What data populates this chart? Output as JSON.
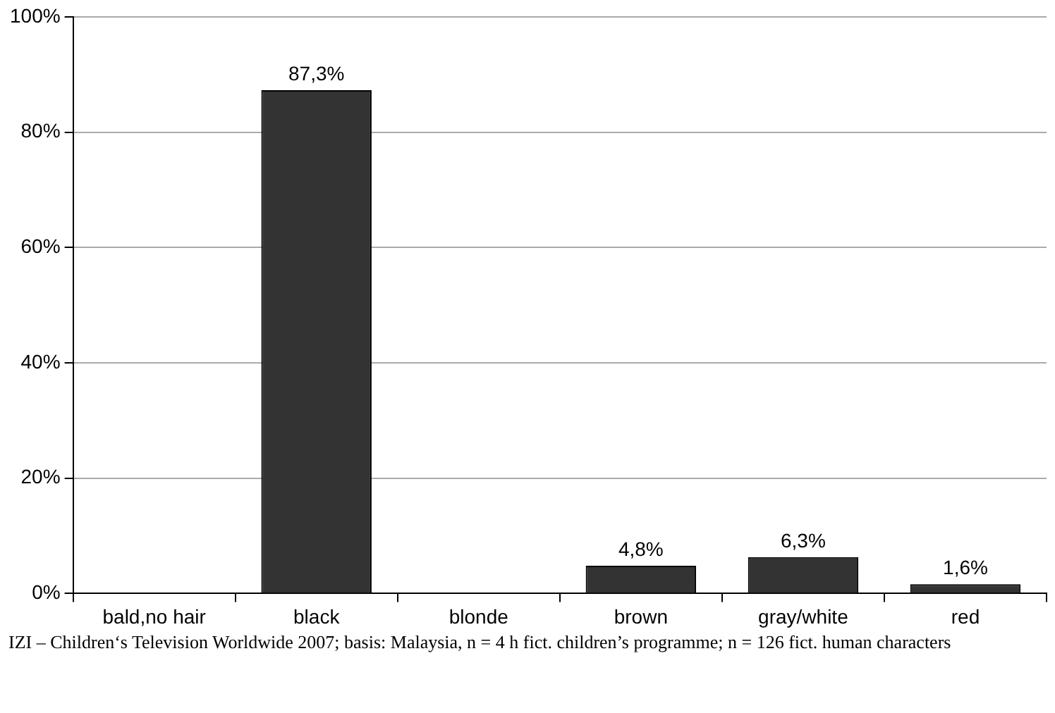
{
  "chart_data": {
    "type": "bar",
    "categories": [
      "bald,no hair",
      "black",
      "blonde",
      "brown",
      "gray/white",
      "red"
    ],
    "values": [
      0,
      87.3,
      0,
      4.8,
      6.3,
      1.6
    ],
    "value_labels": [
      null,
      "87,3%",
      null,
      "4,8%",
      "6,3%",
      "1,6%"
    ],
    "color": "#333333",
    "ylim": [
      0,
      100
    ],
    "yticks": [
      {
        "value": 0,
        "label": "0%"
      },
      {
        "value": 20,
        "label": "20%"
      },
      {
        "value": 40,
        "label": "40%"
      },
      {
        "value": 60,
        "label": "60%"
      },
      {
        "value": 80,
        "label": "80%"
      },
      {
        "value": 100,
        "label": "100%"
      }
    ],
    "grid": "y",
    "legend": false,
    "annotations": [
      "IZI – Children‘s Television Worldwide 2007; basis: Malaysia, n = 4 h fict. children’s programme; n = 126 fict. human characters"
    ]
  }
}
